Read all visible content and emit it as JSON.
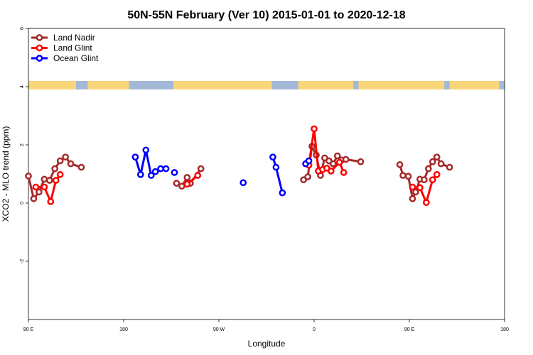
{
  "chart_data": {
    "type": "line",
    "title": "50N-55N February (Ver 10)   2015-01-01 to 2020-12-18",
    "xlabel": "Longitude",
    "ylabel": "XCO2 - MLO trend (ppm)",
    "xlim": [
      90,
      540
    ],
    "ylim": [
      -4,
      6
    ],
    "x_ticks": [
      {
        "value": 90,
        "label": "90 E"
      },
      {
        "value": 180,
        "label": "180"
      },
      {
        "value": 270,
        "label": "90 W"
      },
      {
        "value": 360,
        "label": "0"
      },
      {
        "value": 450,
        "label": "90 E"
      },
      {
        "value": 540,
        "label": "180"
      }
    ],
    "y_ticks": [
      {
        "value": -2,
        "label": "-2"
      },
      {
        "value": 0,
        "label": "0"
      },
      {
        "value": 2,
        "label": "2"
      },
      {
        "value": 4,
        "label": "4"
      },
      {
        "value": 6,
        "label": "6"
      }
    ],
    "legend_position": "top-left",
    "land_ocean_strip": {
      "y_center": 4,
      "land_color": "#F9D67A",
      "ocean_color": "#A4B8D8"
    },
    "series": [
      {
        "name": "Land Nadir",
        "color": "#A52A2A",
        "segments": [
          [
            [
              90,
              0.93
            ],
            [
              95,
              0.15
            ],
            [
              100,
              0.38
            ],
            [
              105,
              0.82
            ],
            [
              110,
              0.78
            ],
            [
              115,
              1.18
            ],
            [
              120,
              1.45
            ],
            [
              125,
              1.58
            ],
            [
              130,
              1.35
            ],
            [
              140,
              1.23
            ]
          ],
          [
            [
              230,
              0.68
            ],
            [
              235,
              0.58
            ],
            [
              240,
              0.88
            ],
            [
              243,
              0.68
            ],
            [
              253,
              1.18
            ]
          ],
          [
            [
              350,
              0.8
            ],
            [
              354,
              0.9
            ],
            [
              358,
              1.95
            ],
            [
              362,
              1.65
            ],
            [
              366,
              0.95
            ],
            [
              370,
              1.55
            ],
            [
              374,
              1.45
            ],
            [
              378,
              1.35
            ],
            [
              382,
              1.62
            ],
            [
              386,
              1.48
            ],
            [
              390,
              1.5
            ],
            [
              404,
              1.42
            ]
          ],
          [
            [
              441,
              1.32
            ],
            [
              444,
              0.95
            ],
            [
              449,
              0.92
            ],
            [
              453,
              0.15
            ],
            [
              456,
              0.38
            ],
            [
              460,
              0.82
            ],
            [
              464,
              0.8
            ],
            [
              468,
              1.18
            ],
            [
              472,
              1.42
            ],
            [
              476,
              1.58
            ],
            [
              480,
              1.35
            ],
            [
              488,
              1.23
            ]
          ]
        ]
      },
      {
        "name": "Land Glint",
        "color": "#FF0000",
        "segments": [
          [
            [
              97,
              0.55
            ],
            [
              105,
              0.55
            ],
            [
              111,
              0.05
            ],
            [
              116,
              0.78
            ],
            [
              120,
              0.98
            ]
          ],
          [
            [
              240,
              0.65
            ],
            [
              250,
              0.95
            ]
          ],
          [
            [
              355,
              1.3
            ],
            [
              360,
              2.55
            ],
            [
              364,
              1.1
            ],
            [
              368,
              1.15
            ],
            [
              372,
              1.2
            ],
            [
              376,
              1.1
            ],
            [
              384,
              1.4
            ],
            [
              388,
              1.05
            ]
          ],
          [
            [
              453,
              0.55
            ],
            [
              460,
              0.53
            ],
            [
              466,
              0.02
            ],
            [
              472,
              0.8
            ],
            [
              476,
              0.98
            ]
          ]
        ]
      },
      {
        "name": "Ocean Glint",
        "color": "#0000FF",
        "segments": [
          [
            [
              191,
              1.58
            ],
            [
              196,
              0.98
            ],
            [
              201,
              1.82
            ],
            [
              206,
              0.95
            ],
            [
              210,
              1.08
            ],
            [
              215,
              1.18
            ],
            [
              220,
              1.18
            ]
          ],
          [
            [
              228,
              1.05
            ]
          ],
          [
            [
              293,
              0.7
            ]
          ],
          [
            [
              321,
              1.58
            ],
            [
              324,
              1.23
            ],
            [
              330,
              0.35
            ]
          ],
          [
            [
              352,
              1.35
            ],
            [
              355,
              1.45
            ]
          ]
        ]
      }
    ]
  }
}
